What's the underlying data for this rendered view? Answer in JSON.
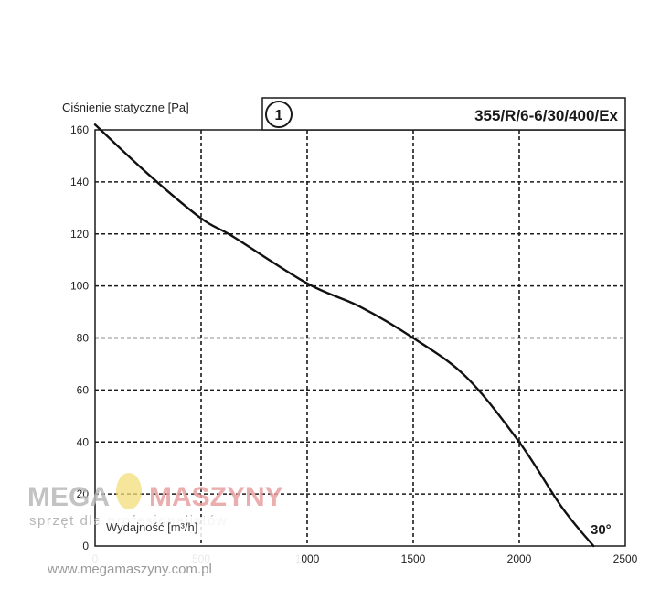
{
  "chart_data": {
    "type": "line",
    "ylabel": "Ciśnienie statyczne [Pa]",
    "xlabel": "Wydajność [m³/h]",
    "model_number": "1",
    "model": "355/R/6-6/30/400/Ex",
    "blade_angle": "30°",
    "xlim": [
      0,
      2500
    ],
    "ylim": [
      0,
      160
    ],
    "x_ticks": [
      "0",
      "500",
      "1000",
      "1500",
      "2000",
      "2500"
    ],
    "y_ticks": [
      "0",
      "20",
      "40",
      "60",
      "80",
      "100",
      "120",
      "140",
      "160"
    ],
    "grid": true,
    "series": [
      {
        "x": [
          0,
          250,
          500,
          650,
          1000,
          1250,
          1500,
          1750,
          2000,
          2200,
          2350
        ],
        "values": [
          162,
          143,
          126,
          119,
          101,
          92,
          80,
          65,
          40,
          15,
          0
        ]
      }
    ]
  },
  "watermark": {
    "brand_left": "MEGA",
    "brand_right": "MASZYNY",
    "tagline": "sprzęt dla profesjonalistów",
    "url": "www.megamaszyny.com.pl"
  },
  "colors": {
    "curve": "#111111",
    "grid": "#1a1a1a",
    "watermark_gray": "#b9b9b9",
    "watermark_red": "#e8a0a0",
    "watermark_logo": "#f3dd7a"
  }
}
